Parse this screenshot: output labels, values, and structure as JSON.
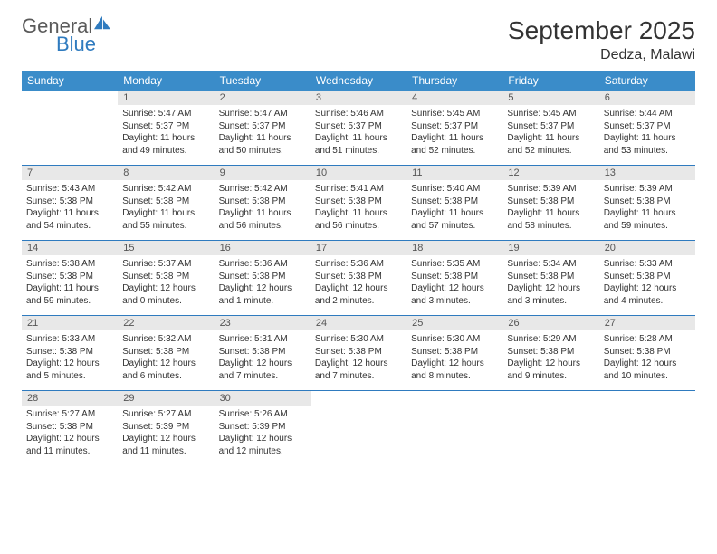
{
  "logo": {
    "word1": "General",
    "word2": "Blue"
  },
  "title": "September 2025",
  "location": "Dedza, Malawi",
  "colors": {
    "header_bg": "#3a8cc9",
    "header_text": "#ffffff",
    "daynum_bg": "#e8e8e8",
    "border": "#2f7bbf",
    "text": "#333333",
    "logo_gray": "#5a5a5a",
    "logo_blue": "#2f7bbf"
  },
  "daysOfWeek": [
    "Sunday",
    "Monday",
    "Tuesday",
    "Wednesday",
    "Thursday",
    "Friday",
    "Saturday"
  ],
  "weeks": [
    [
      {
        "n": "",
        "sr": "",
        "ss": "",
        "dl": ""
      },
      {
        "n": "1",
        "sr": "Sunrise: 5:47 AM",
        "ss": "Sunset: 5:37 PM",
        "dl": "Daylight: 11 hours and 49 minutes."
      },
      {
        "n": "2",
        "sr": "Sunrise: 5:47 AM",
        "ss": "Sunset: 5:37 PM",
        "dl": "Daylight: 11 hours and 50 minutes."
      },
      {
        "n": "3",
        "sr": "Sunrise: 5:46 AM",
        "ss": "Sunset: 5:37 PM",
        "dl": "Daylight: 11 hours and 51 minutes."
      },
      {
        "n": "4",
        "sr": "Sunrise: 5:45 AM",
        "ss": "Sunset: 5:37 PM",
        "dl": "Daylight: 11 hours and 52 minutes."
      },
      {
        "n": "5",
        "sr": "Sunrise: 5:45 AM",
        "ss": "Sunset: 5:37 PM",
        "dl": "Daylight: 11 hours and 52 minutes."
      },
      {
        "n": "6",
        "sr": "Sunrise: 5:44 AM",
        "ss": "Sunset: 5:37 PM",
        "dl": "Daylight: 11 hours and 53 minutes."
      }
    ],
    [
      {
        "n": "7",
        "sr": "Sunrise: 5:43 AM",
        "ss": "Sunset: 5:38 PM",
        "dl": "Daylight: 11 hours and 54 minutes."
      },
      {
        "n": "8",
        "sr": "Sunrise: 5:42 AM",
        "ss": "Sunset: 5:38 PM",
        "dl": "Daylight: 11 hours and 55 minutes."
      },
      {
        "n": "9",
        "sr": "Sunrise: 5:42 AM",
        "ss": "Sunset: 5:38 PM",
        "dl": "Daylight: 11 hours and 56 minutes."
      },
      {
        "n": "10",
        "sr": "Sunrise: 5:41 AM",
        "ss": "Sunset: 5:38 PM",
        "dl": "Daylight: 11 hours and 56 minutes."
      },
      {
        "n": "11",
        "sr": "Sunrise: 5:40 AM",
        "ss": "Sunset: 5:38 PM",
        "dl": "Daylight: 11 hours and 57 minutes."
      },
      {
        "n": "12",
        "sr": "Sunrise: 5:39 AM",
        "ss": "Sunset: 5:38 PM",
        "dl": "Daylight: 11 hours and 58 minutes."
      },
      {
        "n": "13",
        "sr": "Sunrise: 5:39 AM",
        "ss": "Sunset: 5:38 PM",
        "dl": "Daylight: 11 hours and 59 minutes."
      }
    ],
    [
      {
        "n": "14",
        "sr": "Sunrise: 5:38 AM",
        "ss": "Sunset: 5:38 PM",
        "dl": "Daylight: 11 hours and 59 minutes."
      },
      {
        "n": "15",
        "sr": "Sunrise: 5:37 AM",
        "ss": "Sunset: 5:38 PM",
        "dl": "Daylight: 12 hours and 0 minutes."
      },
      {
        "n": "16",
        "sr": "Sunrise: 5:36 AM",
        "ss": "Sunset: 5:38 PM",
        "dl": "Daylight: 12 hours and 1 minute."
      },
      {
        "n": "17",
        "sr": "Sunrise: 5:36 AM",
        "ss": "Sunset: 5:38 PM",
        "dl": "Daylight: 12 hours and 2 minutes."
      },
      {
        "n": "18",
        "sr": "Sunrise: 5:35 AM",
        "ss": "Sunset: 5:38 PM",
        "dl": "Daylight: 12 hours and 3 minutes."
      },
      {
        "n": "19",
        "sr": "Sunrise: 5:34 AM",
        "ss": "Sunset: 5:38 PM",
        "dl": "Daylight: 12 hours and 3 minutes."
      },
      {
        "n": "20",
        "sr": "Sunrise: 5:33 AM",
        "ss": "Sunset: 5:38 PM",
        "dl": "Daylight: 12 hours and 4 minutes."
      }
    ],
    [
      {
        "n": "21",
        "sr": "Sunrise: 5:33 AM",
        "ss": "Sunset: 5:38 PM",
        "dl": "Daylight: 12 hours and 5 minutes."
      },
      {
        "n": "22",
        "sr": "Sunrise: 5:32 AM",
        "ss": "Sunset: 5:38 PM",
        "dl": "Daylight: 12 hours and 6 minutes."
      },
      {
        "n": "23",
        "sr": "Sunrise: 5:31 AM",
        "ss": "Sunset: 5:38 PM",
        "dl": "Daylight: 12 hours and 7 minutes."
      },
      {
        "n": "24",
        "sr": "Sunrise: 5:30 AM",
        "ss": "Sunset: 5:38 PM",
        "dl": "Daylight: 12 hours and 7 minutes."
      },
      {
        "n": "25",
        "sr": "Sunrise: 5:30 AM",
        "ss": "Sunset: 5:38 PM",
        "dl": "Daylight: 12 hours and 8 minutes."
      },
      {
        "n": "26",
        "sr": "Sunrise: 5:29 AM",
        "ss": "Sunset: 5:38 PM",
        "dl": "Daylight: 12 hours and 9 minutes."
      },
      {
        "n": "27",
        "sr": "Sunrise: 5:28 AM",
        "ss": "Sunset: 5:38 PM",
        "dl": "Daylight: 12 hours and 10 minutes."
      }
    ],
    [
      {
        "n": "28",
        "sr": "Sunrise: 5:27 AM",
        "ss": "Sunset: 5:38 PM",
        "dl": "Daylight: 12 hours and 11 minutes."
      },
      {
        "n": "29",
        "sr": "Sunrise: 5:27 AM",
        "ss": "Sunset: 5:39 PM",
        "dl": "Daylight: 12 hours and 11 minutes."
      },
      {
        "n": "30",
        "sr": "Sunrise: 5:26 AM",
        "ss": "Sunset: 5:39 PM",
        "dl": "Daylight: 12 hours and 12 minutes."
      },
      {
        "n": "",
        "sr": "",
        "ss": "",
        "dl": ""
      },
      {
        "n": "",
        "sr": "",
        "ss": "",
        "dl": ""
      },
      {
        "n": "",
        "sr": "",
        "ss": "",
        "dl": ""
      },
      {
        "n": "",
        "sr": "",
        "ss": "",
        "dl": ""
      }
    ]
  ]
}
